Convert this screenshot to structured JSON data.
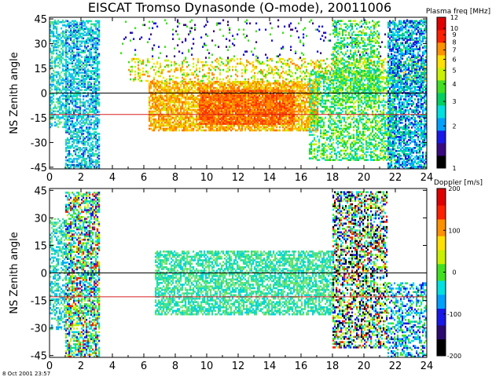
{
  "figure": {
    "title": "EISCAT Tromso Dynasonde (O-mode),  20011006",
    "footer": "8 Oct 2001 23:57"
  },
  "chart_data": [
    {
      "type": "heatmap",
      "name": "Plasma frequency panel",
      "title": "EISCAT Tromso Dynasonde (O-mode),  20011006",
      "xlabel": "",
      "ylabel": "NS Zenith angle",
      "x_ticks": [
        0,
        2,
        4,
        6,
        8,
        10,
        12,
        14,
        16,
        18,
        20,
        22,
        24
      ],
      "y_ticks": [
        45,
        30,
        15,
        0,
        -15,
        -30,
        -45
      ],
      "xlim": [
        0,
        24
      ],
      "ylim": [
        -46,
        46
      ],
      "reference_lines": [
        {
          "y": 0,
          "color": "#000000"
        },
        {
          "y": -13,
          "color": "#d81e1e"
        }
      ],
      "colorbar": {
        "label": "Plasma freq [MHz]",
        "scale": "log",
        "range": [
          1,
          12
        ],
        "ticks": [
          12,
          10,
          9,
          8,
          7,
          6,
          5,
          4,
          3,
          2,
          1
        ],
        "colors": [
          "#000000",
          "#3a0a80",
          "#1818e8",
          "#00a0ff",
          "#00e0e0",
          "#00d060",
          "#40e020",
          "#c8f000",
          "#ffe000",
          "#ff9000",
          "#ff2000",
          "#e00000"
        ]
      },
      "clusters": [
        {
          "x": [
            0.0,
            1.0
          ],
          "y": [
            -20,
            45
          ],
          "fill": 0.55,
          "colors": [
            "#00d0e8",
            "#40e0a0",
            "#80e880",
            "#00a8ff"
          ]
        },
        {
          "x": [
            1.0,
            3.2
          ],
          "y": [
            -45,
            45
          ],
          "fill": 0.6,
          "colors": [
            "#00d0e8",
            "#00e0c0",
            "#30b0ff",
            "#40e080",
            "#1a40e0"
          ]
        },
        {
          "x": [
            6.3,
            17.0
          ],
          "y": [
            -22,
            8
          ],
          "fill": 0.7,
          "colors": [
            "#ffb000",
            "#ff9000",
            "#ffd000",
            "#c8f000",
            "#ff7000"
          ]
        },
        {
          "x": [
            9.5,
            15.5
          ],
          "y": [
            -18,
            2
          ],
          "fill": 0.8,
          "colors": [
            "#ff5000",
            "#ff3000",
            "#ff7000",
            "#ff9000"
          ]
        },
        {
          "x": [
            5.0,
            24.0
          ],
          "y": [
            8,
            22
          ],
          "fill": 0.25,
          "colors": [
            "#ffe000",
            "#c8f000",
            "#40e020",
            "#ff9000"
          ]
        },
        {
          "x": [
            4.5,
            24.0
          ],
          "y": [
            22,
            45
          ],
          "fill": 0.05,
          "colors": [
            "#3a0a80",
            "#1818e8",
            "#40e020"
          ]
        },
        {
          "x": [
            16.5,
            22.0
          ],
          "y": [
            -40,
            15
          ],
          "fill": 0.45,
          "colors": [
            "#c8f000",
            "#40e020",
            "#00d060",
            "#00e0e0"
          ]
        },
        {
          "x": [
            18.0,
            21.0
          ],
          "y": [
            -5,
            45
          ],
          "fill": 0.4,
          "colors": [
            "#40e020",
            "#00d060",
            "#c8f000",
            "#00e0e0"
          ]
        },
        {
          "x": [
            21.5,
            24.0
          ],
          "y": [
            -45,
            45
          ],
          "fill": 0.6,
          "colors": [
            "#00a0ff",
            "#00e0e0",
            "#1818e8",
            "#00d060"
          ]
        }
      ]
    },
    {
      "type": "heatmap",
      "name": "Doppler velocity panel",
      "title": "",
      "xlabel": "",
      "ylabel": "NS Zenith angle",
      "x_ticks": [
        0,
        2,
        4,
        6,
        8,
        10,
        12,
        14,
        16,
        18,
        20,
        22,
        24
      ],
      "y_ticks": [
        45,
        30,
        15,
        0,
        -15,
        -30,
        -45
      ],
      "xlim": [
        0,
        24
      ],
      "ylim": [
        -46,
        46
      ],
      "reference_lines": [
        {
          "y": 0,
          "color": "#000000"
        },
        {
          "y": -13,
          "color": "#d81e1e"
        }
      ],
      "colorbar": {
        "label": "Doppler [m/s]",
        "scale": "linear",
        "range": [
          -200,
          200
        ],
        "ticks": [
          200,
          100,
          0,
          -100,
          -200
        ],
        "colors": [
          "#000000",
          "#2a0a70",
          "#1818e8",
          "#00a0ff",
          "#00e0e0",
          "#40e020",
          "#c8f000",
          "#ffe000",
          "#ff9000",
          "#ff2000",
          "#e00000"
        ]
      },
      "clusters": [
        {
          "x": [
            0.0,
            1.0
          ],
          "y": [
            -30,
            30
          ],
          "fill": 0.5,
          "colors": [
            "#00d0e8",
            "#40e0a0",
            "#00a8ff",
            "#80e880"
          ]
        },
        {
          "x": [
            1.0,
            3.2
          ],
          "y": [
            -45,
            45
          ],
          "fill": 0.6,
          "colors": [
            "#40e020",
            "#00e0c0",
            "#c8f000",
            "#00d0e8",
            "#ff2000",
            "#1818e8"
          ]
        },
        {
          "x": [
            6.7,
            18.0
          ],
          "y": [
            -22,
            13
          ],
          "fill": 0.65,
          "colors": [
            "#40e0a0",
            "#00e0c0",
            "#60e060",
            "#00d0e8",
            "#80e880"
          ]
        },
        {
          "x": [
            18.0,
            21.5
          ],
          "y": [
            -40,
            45
          ],
          "fill": 0.5,
          "colors": [
            "#40e020",
            "#00e0e0",
            "#1818e8",
            "#ff2000",
            "#c8f000",
            "#000000"
          ]
        },
        {
          "x": [
            21.5,
            24.0
          ],
          "y": [
            -45,
            -5
          ],
          "fill": 0.45,
          "colors": [
            "#00a0ff",
            "#00e0e0",
            "#1818e8",
            "#40e020"
          ]
        }
      ]
    }
  ]
}
